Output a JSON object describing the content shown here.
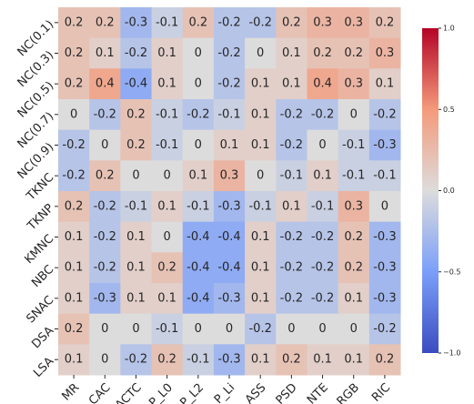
{
  "chart_data": {
    "type": "heatmap",
    "rows": [
      "NC(0.1)",
      "NC(0.3)",
      "NC(0.5)",
      "NC(0.7)",
      "NC(0.9)",
      "TKNC",
      "TKNP",
      "KMNC",
      "NBC",
      "SNAC",
      "DSA",
      "LSA"
    ],
    "columns": [
      "MR",
      "CAC",
      "ACTC",
      "P_L0",
      "P_L2",
      "P_Li",
      "ASS",
      "PSD",
      "NTE",
      "RGB",
      "RIC"
    ],
    "values": [
      [
        0.2,
        0.2,
        -0.3,
        -0.1,
        0.2,
        -0.2,
        -0.2,
        0.2,
        0.3,
        0.3,
        0.2
      ],
      [
        0.2,
        0.1,
        -0.2,
        0.1,
        0,
        -0.2,
        0,
        0.1,
        0.2,
        0.2,
        0.3
      ],
      [
        0.2,
        0.4,
        -0.4,
        0.1,
        0,
        -0.2,
        0.1,
        0.1,
        0.4,
        0.3,
        0.1
      ],
      [
        0,
        -0.2,
        0.2,
        -0.1,
        -0.2,
        -0.1,
        0.1,
        -0.2,
        -0.2,
        0,
        -0.2
      ],
      [
        -0.2,
        0,
        0.2,
        -0.1,
        0,
        0.1,
        0.1,
        -0.2,
        0,
        -0.1,
        -0.3
      ],
      [
        -0.2,
        0.2,
        0,
        0,
        0.1,
        0.3,
        0,
        -0.1,
        0.1,
        -0.1,
        -0.1
      ],
      [
        0.2,
        -0.2,
        -0.1,
        0.1,
        -0.1,
        -0.3,
        -0.1,
        0.1,
        -0.1,
        0.3,
        0
      ],
      [
        0.1,
        -0.2,
        0.1,
        0,
        -0.4,
        -0.4,
        0.1,
        -0.2,
        -0.2,
        0.2,
        -0.3
      ],
      [
        0.1,
        -0.2,
        0.1,
        0.2,
        -0.4,
        -0.4,
        0.1,
        -0.2,
        -0.2,
        0.2,
        -0.3
      ],
      [
        0.1,
        -0.3,
        0.1,
        0.1,
        -0.4,
        -0.3,
        0.1,
        -0.2,
        -0.2,
        0.1,
        -0.3
      ],
      [
        0.2,
        0,
        0,
        -0.1,
        0,
        0,
        -0.2,
        0,
        0,
        0,
        -0.2
      ],
      [
        0.1,
        0,
        -0.2,
        0.2,
        -0.1,
        -0.3,
        0.1,
        0.2,
        0.1,
        0.1,
        0.2
      ]
    ],
    "clim": [
      -1,
      1
    ],
    "colorscale": [
      "#3b4cc0",
      "#7b9ff9",
      "#dddcdc",
      "#f49a7b",
      "#b40426"
    ],
    "cticks": [
      {
        "value": 1,
        "label": "1.0"
      },
      {
        "value": 0.5,
        "label": "0.5"
      },
      {
        "value": 0,
        "label": "0.0"
      },
      {
        "value": -0.5,
        "label": "−0.5"
      },
      {
        "value": -1,
        "label": "−1.0"
      }
    ]
  }
}
